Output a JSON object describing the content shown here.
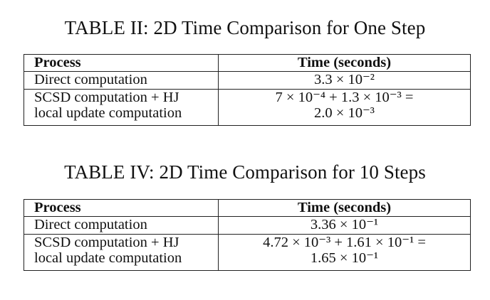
{
  "tables": [
    {
      "caption": "TABLE II: 2D Time Comparison for One Step",
      "headers": {
        "process": "Process",
        "time": "Time (seconds)"
      },
      "rows": [
        {
          "process_lines": [
            "Direct computation"
          ],
          "time_lines": [
            "3.3 × 10⁻²"
          ]
        },
        {
          "process_lines": [
            "SCSD computation + HJ",
            "local update computation"
          ],
          "time_lines": [
            "7 × 10⁻⁴ + 1.3 × 10⁻³ =",
            "2.0 × 10⁻³"
          ]
        }
      ]
    },
    {
      "caption": "TABLE IV: 2D Time Comparison for 10 Steps",
      "headers": {
        "process": "Process",
        "time": "Time (seconds)"
      },
      "rows": [
        {
          "process_lines": [
            "Direct computation"
          ],
          "time_lines": [
            "3.36 × 10⁻¹"
          ]
        },
        {
          "process_lines": [
            "SCSD computation + HJ",
            "local update computation"
          ],
          "time_lines": [
            "4.72 × 10⁻³ + 1.61 × 10⁻¹ =",
            "1.65 × 10⁻¹"
          ]
        }
      ]
    }
  ]
}
